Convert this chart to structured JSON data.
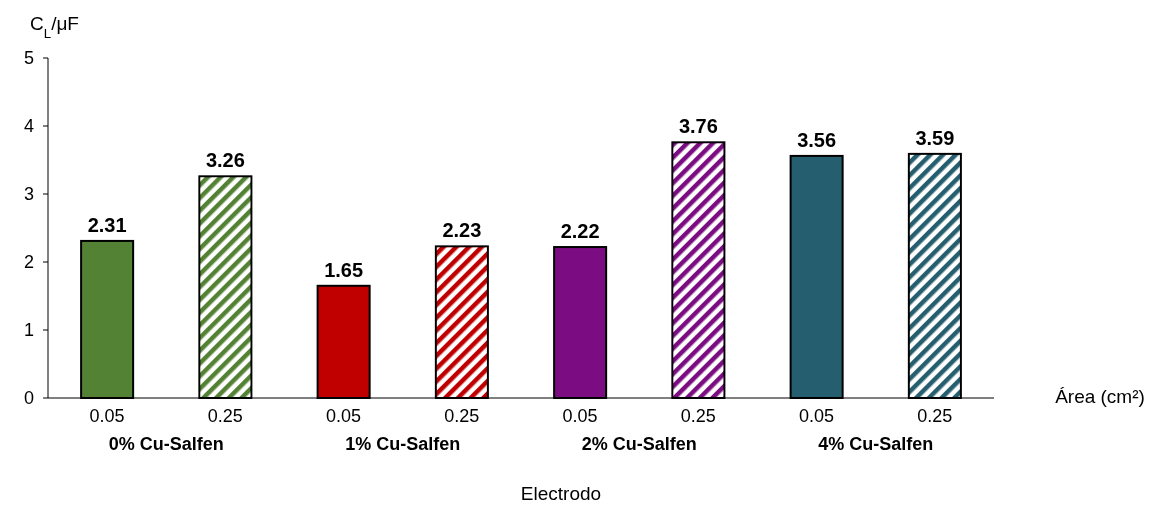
{
  "chart_data": {
    "type": "bar",
    "ylabel": "C$_{L}$/μF",
    "xlabel": "Electrodo",
    "categories": [
      "0.05",
      "0.25",
      "0.05",
      "0.25",
      "0.05",
      "0.25",
      "0.05",
      "0.25"
    ],
    "values": [
      2.31,
      3.26,
      1.65,
      2.23,
      2.22,
      3.76,
      3.56,
      3.59
    ],
    "colors": [
      "#548235",
      "#548235",
      "#c00000",
      "#c00000",
      "#7b0c82",
      "#7b0c82",
      "#255e6e",
      "#255e6e"
    ],
    "ylim": [
      0,
      5
    ],
    "yticks": [
      0,
      1,
      2,
      3,
      4,
      5
    ],
    "grid": false,
    "data_labels": true,
    "annotations": [
      "0% Cu-Salfen",
      "1% Cu-Salfen",
      "2% Cu-Salfen",
      "4% Cu-Salfen",
      "Área (cm²)"
    ]
  }
}
